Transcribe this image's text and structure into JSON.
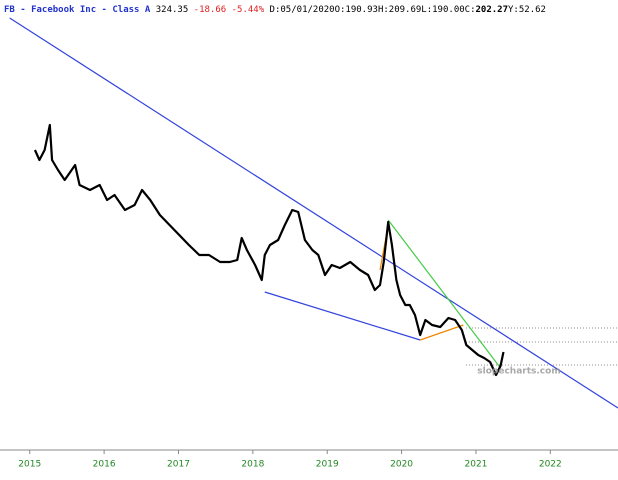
{
  "header": {
    "symbol": "FB - Facebook Inc - Class A",
    "last": "324.35",
    "change": "-18.66",
    "change_pct": "-5.44%",
    "fields": [
      {
        "label": "D:",
        "value": "05/01/2020"
      },
      {
        "label": "O:",
        "value": "190.93"
      },
      {
        "label": "H:",
        "value": "209.69"
      },
      {
        "label": "L:",
        "value": "190.00"
      },
      {
        "label": "C:",
        "value": "202.27"
      },
      {
        "label": "Y:",
        "value": "52.62"
      }
    ]
  },
  "chart_data": {
    "type": "line",
    "xlim": [
      2014.6,
      2022.91
    ],
    "xticks": [
      2015,
      2016,
      2017,
      2018,
      2019,
      2020,
      2021,
      2022
    ],
    "ylim": [
      0,
      450
    ],
    "watermark": "slopecharts.com",
    "series": [
      {
        "color": "#000000",
        "x": [
          2015.07,
          2015.13,
          2015.2,
          2015.27,
          2015.3,
          2015.38,
          2015.47,
          2015.61,
          2015.67,
          2015.81,
          2015.94,
          2016.04,
          2016.14,
          2016.28,
          2016.41,
          2016.51,
          2016.62,
          2016.75,
          2016.88,
          2017.01,
          2017.14,
          2017.28,
          2017.41,
          2017.56,
          2017.69,
          2017.79,
          2017.85,
          2017.92,
          2018.03,
          2018.12,
          2018.16,
          2018.23,
          2018.34,
          2018.43,
          2018.53,
          2018.61,
          2018.7,
          2018.8,
          2018.88,
          2018.97,
          2019.06,
          2019.17,
          2019.31,
          2019.44,
          2019.55,
          2019.64,
          2019.71,
          2019.76,
          2019.82,
          2019.87,
          2019.93,
          2019.98,
          2020.05,
          2020.11,
          2020.18,
          2020.25,
          2020.32,
          2020.41,
          2020.52,
          2020.63,
          2020.72,
          2020.81,
          2020.87,
          2020.95,
          2021.03,
          2021.11,
          2021.19,
          2021.27,
          2021.33,
          2021.37
        ],
        "values": [
          300,
          290,
          300,
          325,
          290,
          280,
          270,
          285,
          265,
          260,
          265,
          250,
          255,
          240,
          245,
          260,
          250,
          235,
          225,
          215,
          205,
          195,
          195,
          188,
          188,
          190,
          212,
          200,
          185,
          170,
          195,
          205,
          210,
          225,
          240,
          238,
          210,
          200,
          195,
          175,
          185,
          182,
          188,
          180,
          175,
          160,
          165,
          188,
          228,
          205,
          170,
          155,
          145,
          145,
          135,
          115,
          130,
          125,
          123,
          132,
          130,
          120,
          105,
          100,
          95,
          92,
          88,
          75,
          84,
          98
        ]
      }
    ],
    "trendlines": [
      {
        "color": "#3344dd",
        "x": [
          2014.73,
          2022.91
        ],
        "y": [
          432,
          42
        ]
      },
      {
        "color": "#3344dd",
        "x": [
          2018.16,
          2020.25
        ],
        "y": [
          158,
          110
        ]
      },
      {
        "color": "#44cc44",
        "x": [
          2019.82,
          2021.33
        ],
        "y": [
          230,
          82
        ]
      },
      {
        "color": "#ee8800",
        "x": [
          2019.71,
          2019.82
        ],
        "y": [
          180,
          225
        ]
      },
      {
        "color": "#ee8800",
        "x": [
          2020.25,
          2020.83
        ],
        "y": [
          110,
          125
        ]
      }
    ],
    "hlines": [
      122,
      108,
      85
    ]
  }
}
